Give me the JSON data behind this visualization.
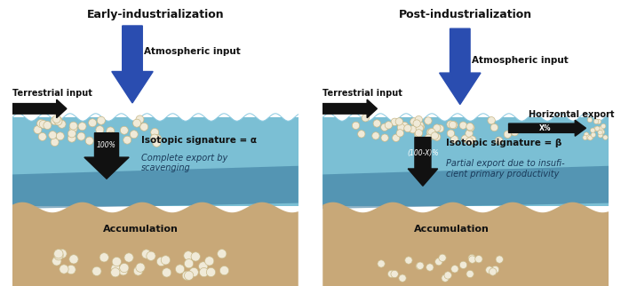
{
  "bg_color": "#ffffff",
  "water_color_light": "#7bbfd4",
  "water_color_mid": "#5aa0c0",
  "water_color_dark": "#3a7a9e",
  "sediment_color": "#c8a878",
  "arrow_blue": "#2a4db0",
  "arrow_black": "#111111",
  "text_dark": "#111111",
  "text_water_italic": "#1a3a5a",
  "dot_color": "#f0ead8",
  "dot_edge": "#c8b888",
  "left_title": "Early-industrialization",
  "right_title": "Post-industrialization",
  "left_atm_label": "Atmospheric input",
  "right_atm_label": "Atmospheric input",
  "left_terr_label": "Terrestrial input",
  "right_terr_label": "Terrestrial input",
  "left_iso_label": "Isotopic signature = α",
  "right_iso_label": "Isotopic signature = β",
  "left_export_label": "Complete export by\nscavenging",
  "right_export_label": "Partial export due to insufi-\ncient primary productivity",
  "left_accum_label": "Accumulation",
  "right_accum_label": "Accumulation",
  "left_pct_label": "100%",
  "right_pct_label": "(100-X)%",
  "right_horiz_label": "Horizontal export",
  "right_horiz_pct": "X%"
}
